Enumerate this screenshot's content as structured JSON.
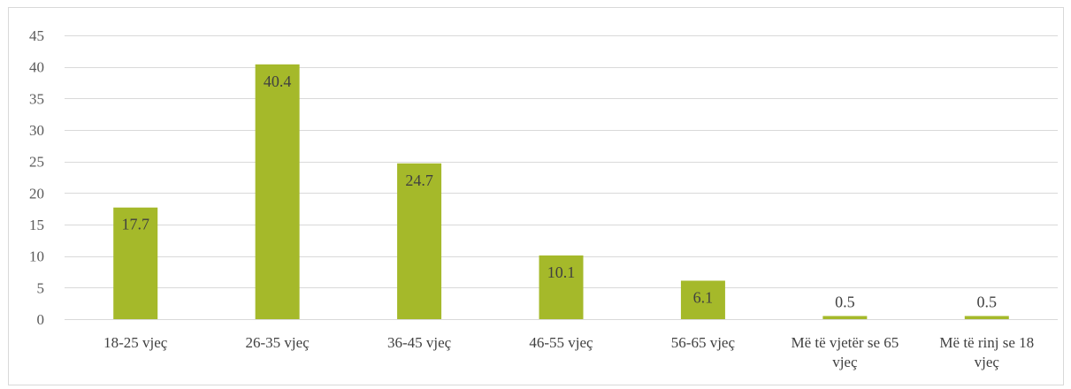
{
  "chart_data": {
    "type": "bar",
    "title": "",
    "xlabel": "",
    "ylabel": "",
    "categories": [
      "18-25 vjeç",
      "26-35 vjeç",
      "36-45 vjeç",
      "46-55 vjeç",
      "56-65 vjeç",
      "Më të vjetër se 65 vjeç",
      "Më të rinj se 18 vjeç"
    ],
    "values": [
      17.7,
      40.4,
      24.7,
      10.1,
      6.1,
      0.5,
      0.5
    ],
    "data_labels": [
      "17.7",
      "40.4",
      "24.7",
      "10.1",
      "6.1",
      "0.5",
      "0.5"
    ],
    "ylim": [
      0,
      45
    ],
    "yticks": [
      0,
      5,
      10,
      15,
      20,
      25,
      30,
      35,
      40,
      45
    ],
    "grid": true,
    "legend": "none",
    "bar_color": "#a5b92a",
    "grid_color": "#d9d9d9"
  }
}
